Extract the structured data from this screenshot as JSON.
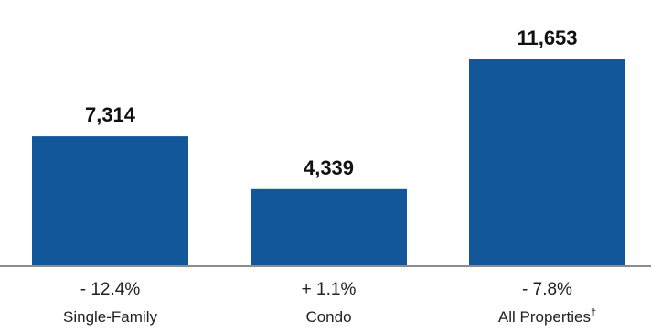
{
  "colors": {
    "bar": "#115799",
    "baseline": "#8c8c8c",
    "text": "#111111"
  },
  "chart_data": {
    "type": "bar",
    "categories": [
      "Single-Family",
      "Condo",
      "All Properties"
    ],
    "category_markers": [
      "",
      "",
      "†"
    ],
    "values": [
      7314,
      4339,
      11653
    ],
    "value_labels": [
      "7,314",
      "4,339",
      "11,653"
    ],
    "changes": [
      "- 12.4%",
      "+ 1.1%",
      "- 7.8%"
    ],
    "title": "",
    "xlabel": "",
    "ylabel": "",
    "ylim": [
      0,
      15000
    ],
    "grid": false,
    "legend": "none"
  }
}
